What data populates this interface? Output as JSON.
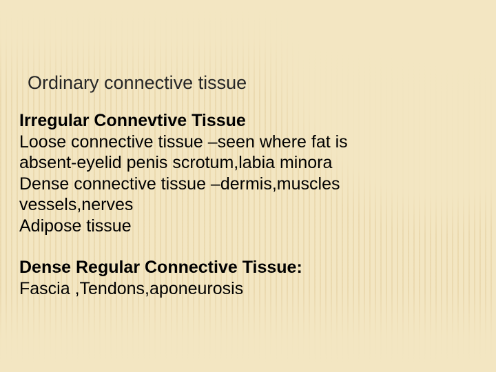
{
  "slide": {
    "background_color": "#f3e6c2",
    "stripe_color": "rgba(210,180,120,0.25)",
    "text_color": "#000000",
    "title_color": "#262626",
    "title_fontsize": 27,
    "body_fontsize": 25,
    "title": "Ordinary connective tissue",
    "section1": {
      "heading": "Irregular Connevtive Tissue",
      "lines": [
        "Loose connective tissue –seen where fat is absent-eyelid penis scrotum,labia minora",
        "Dense connective tissue –dermis,muscles vessels,nerves",
        "Adipose tissue"
      ]
    },
    "section2": {
      "heading": "Dense Regular Connective Tissue:",
      "lines": [
        "Fascia ,Tendons,aponeurosis"
      ]
    }
  }
}
